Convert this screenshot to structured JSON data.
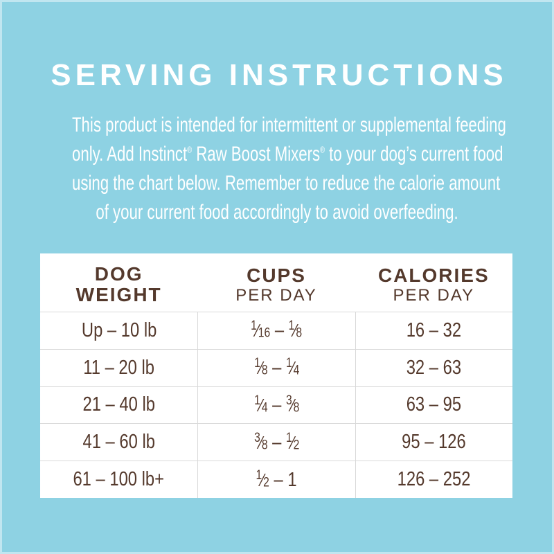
{
  "page": {
    "title": "SERVING INSTRUCTIONS",
    "intro_lines": [
      "This product is intended for intermittent or supplemental feeding",
      "only. Add Instinct® Raw Boost Mixers® to your dog’s current food",
      "using the chart below. Remember to reduce the calorie amount",
      "of your current food accordingly to avoid overfeeding."
    ]
  },
  "table": {
    "columns": [
      {
        "line1": "DOG",
        "line2": "WEIGHT",
        "line2_bold": true
      },
      {
        "line1": "CUPS",
        "line2": "PER DAY",
        "line2_bold": false
      },
      {
        "line1": "CALORIES",
        "line2": "PER DAY",
        "line2_bold": false
      }
    ],
    "rows": [
      {
        "weight": "Up – 10 lb",
        "cups": "1/16 – 1/8",
        "calories": "16 – 32"
      },
      {
        "weight": "11 – 20 lb",
        "cups": "1/8 – 1/4",
        "calories": "32 – 63"
      },
      {
        "weight": "21 – 40 lb",
        "cups": "1/4 – 3/8",
        "calories": "63 – 95"
      },
      {
        "weight": "41 – 60 lb",
        "cups": "3/8 – 1/2",
        "calories": "95 – 126"
      },
      {
        "weight": "61 – 100 lb+",
        "cups": "1/2 – 1",
        "calories": "126 – 252"
      }
    ]
  },
  "colors": {
    "background": "#8ed2e3",
    "heading_text": "#ffffff",
    "body_text": "#ffffff",
    "table_background": "#ffffff",
    "table_text_brown": "#54392c",
    "grid_line": "#d9d9d9"
  }
}
